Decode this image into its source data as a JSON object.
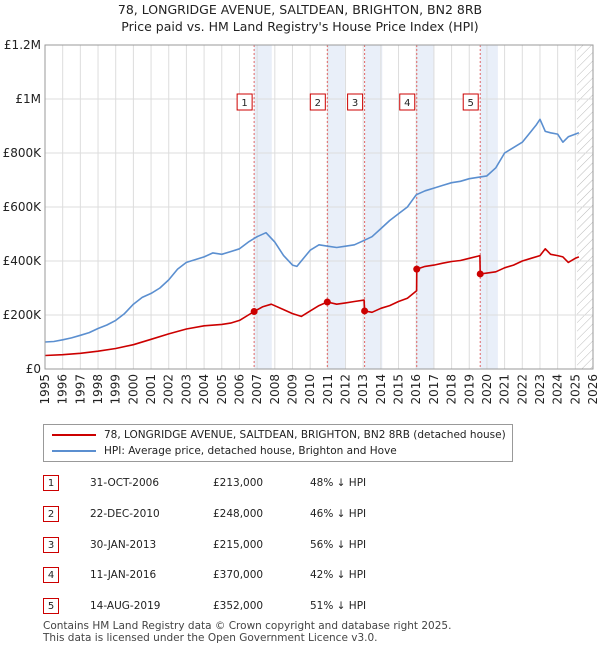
{
  "title_line1": "78, LONGRIDGE AVENUE, SALTDEAN, BRIGHTON, BN2 8RB",
  "title_line2": "Price paid vs. HM Land Registry's House Price Index (HPI)",
  "chart_data": {
    "type": "line",
    "ylim": [
      0,
      1200000
    ],
    "xlim": [
      1995,
      2026
    ],
    "y_ticks": [
      {
        "value": 0,
        "label": "£0"
      },
      {
        "value": 200000,
        "label": "£200K"
      },
      {
        "value": 400000,
        "label": "£400K"
      },
      {
        "value": 600000,
        "label": "£600K"
      },
      {
        "value": 800000,
        "label": "£800K"
      },
      {
        "value": 1000000,
        "label": "£1M"
      },
      {
        "value": 1200000,
        "label": "£1.2M"
      }
    ],
    "x_ticks": [
      "1995",
      "1996",
      "1997",
      "1998",
      "1999",
      "2000",
      "2001",
      "2002",
      "2003",
      "2004",
      "2005",
      "2006",
      "2007",
      "2008",
      "2009",
      "2010",
      "2011",
      "2012",
      "2013",
      "2014",
      "2015",
      "2016",
      "2017",
      "2018",
      "2019",
      "2020",
      "2021",
      "2022",
      "2023",
      "2024",
      "2025",
      "2026"
    ],
    "forecast_start": 2025.1,
    "series": [
      {
        "name": "HPI: Average price, detached house, Brighton and Hove",
        "color": "#5b8fd0",
        "x": [
          1995,
          1995.5,
          1996,
          1996.5,
          1997,
          1997.5,
          1998,
          1998.5,
          1999,
          1999.5,
          2000,
          2000.5,
          2001,
          2001.5,
          2002,
          2002.5,
          2003,
          2003.5,
          2004,
          2004.5,
          2005,
          2005.5,
          2006,
          2006.5,
          2007,
          2007.5,
          2008,
          2008.5,
          2009,
          2009.25,
          2009.5,
          2010,
          2010.5,
          2011,
          2011.5,
          2012,
          2012.5,
          2013,
          2013.5,
          2014,
          2014.5,
          2015,
          2015.5,
          2016,
          2016.5,
          2017,
          2017.5,
          2018,
          2018.5,
          2019,
          2019.5,
          2020,
          2020.5,
          2021,
          2021.5,
          2022,
          2022.5,
          2022.8,
          2023,
          2023.3,
          2023.6,
          2024,
          2024.3,
          2024.6,
          2025,
          2025.2
        ],
        "values": [
          100000,
          102000,
          108000,
          115000,
          125000,
          135000,
          150000,
          163000,
          180000,
          205000,
          240000,
          265000,
          280000,
          300000,
          330000,
          370000,
          395000,
          405000,
          415000,
          430000,
          425000,
          435000,
          445000,
          470000,
          490000,
          505000,
          470000,
          420000,
          385000,
          380000,
          400000,
          440000,
          460000,
          455000,
          450000,
          455000,
          460000,
          475000,
          490000,
          520000,
          550000,
          575000,
          600000,
          645000,
          660000,
          670000,
          680000,
          690000,
          695000,
          705000,
          710000,
          715000,
          745000,
          800000,
          820000,
          840000,
          880000,
          905000,
          925000,
          880000,
          875000,
          870000,
          840000,
          860000,
          870000,
          875000
        ]
      },
      {
        "name": "78, LONGRIDGE AVENUE, SALTDEAN, BRIGHTON, BN2 8RB (detached house)",
        "color": "#cc0000",
        "x": [
          1995,
          1996,
          1997,
          1998,
          1999,
          2000,
          2001,
          2002,
          2003,
          2004,
          2005,
          2005.5,
          2006,
          2006.83,
          2007.3,
          2007.8,
          2008.5,
          2009,
          2009.5,
          2010,
          2010.5,
          2010.97,
          2011.5,
          2012,
          2012.5,
          2013.05,
          2013.08,
          2013.5,
          2014,
          2014.5,
          2015,
          2015.5,
          2016.02,
          2016.03,
          2016.5,
          2017,
          2017.5,
          2018,
          2018.5,
          2019,
          2019.5,
          2019.6,
          2019.62,
          2020,
          2020.5,
          2021,
          2021.5,
          2022,
          2022.5,
          2023,
          2023.3,
          2023.6,
          2024,
          2024.3,
          2024.6,
          2025,
          2025.2
        ],
        "values": [
          50000,
          53000,
          58000,
          66000,
          76000,
          90000,
          110000,
          130000,
          148000,
          160000,
          165000,
          170000,
          180000,
          213000,
          230000,
          240000,
          220000,
          205000,
          195000,
          215000,
          235000,
          248000,
          240000,
          245000,
          250000,
          255000,
          215000,
          210000,
          225000,
          235000,
          250000,
          262000,
          290000,
          370000,
          380000,
          385000,
          392000,
          398000,
          402000,
          410000,
          418000,
          420000,
          352000,
          355000,
          360000,
          375000,
          385000,
          400000,
          410000,
          420000,
          445000,
          425000,
          420000,
          415000,
          395000,
          410000,
          415000
        ]
      }
    ],
    "sales": [
      {
        "num": "1",
        "x": 2006.83,
        "value": 213000
      },
      {
        "num": "2",
        "x": 2010.97,
        "value": 248000
      },
      {
        "num": "3",
        "x": 2013.08,
        "value": 215000
      },
      {
        "num": "4",
        "x": 2016.03,
        "value": 370000
      },
      {
        "num": "5",
        "x": 2019.62,
        "value": 352000
      }
    ]
  },
  "legend": {
    "item1": "78, LONGRIDGE AVENUE, SALTDEAN, BRIGHTON, BN2 8RB (detached house)",
    "item2": "HPI: Average price, detached house, Brighton and Hove"
  },
  "sales_table": [
    {
      "num": "1",
      "date": "31-OCT-2006",
      "price": "£213,000",
      "hpi": "48% ↓ HPI"
    },
    {
      "num": "2",
      "date": "22-DEC-2010",
      "price": "£248,000",
      "hpi": "46% ↓ HPI"
    },
    {
      "num": "3",
      "date": "30-JAN-2013",
      "price": "£215,000",
      "hpi": "56% ↓ HPI"
    },
    {
      "num": "4",
      "date": "11-JAN-2016",
      "price": "£370,000",
      "hpi": "42% ↓ HPI"
    },
    {
      "num": "5",
      "date": "14-AUG-2019",
      "price": "£352,000",
      "hpi": "51% ↓ HPI"
    }
  ],
  "footer": {
    "line1": "Contains HM Land Registry data © Crown copyright and database right 2025.",
    "line2": "This data is licensed under the Open Government Licence v3.0."
  }
}
